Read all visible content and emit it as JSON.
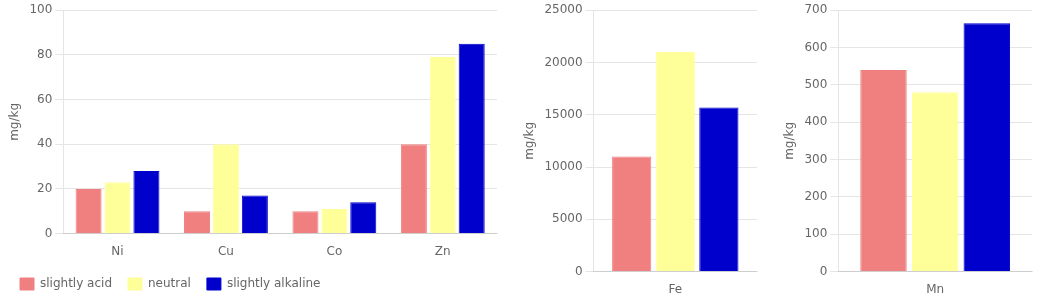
{
  "chart_data": [
    {
      "type": "bar",
      "categories": [
        "Ni",
        "Cu",
        "Co",
        "Zn"
      ],
      "series": [
        {
          "name": "slightly acid",
          "color": "#F08080",
          "values": [
            20,
            10,
            10,
            40
          ]
        },
        {
          "name": "neutral",
          "color": "#FFFF99",
          "values": [
            23,
            40,
            11,
            79
          ]
        },
        {
          "name": "slightly alkaline",
          "color": "#0000CD",
          "values": [
            28,
            17,
            14,
            85
          ]
        }
      ],
      "y_label": "mg/kg",
      "ylim": [
        0,
        100
      ],
      "yticks": [
        0,
        20,
        40,
        60,
        80,
        100
      ],
      "grid": true,
      "legend": "lower left"
    },
    {
      "type": "bar",
      "categories": [
        "Fe"
      ],
      "series": [
        {
          "name": "slightly acid",
          "color": "#F08080",
          "values": [
            11000
          ]
        },
        {
          "name": "neutral",
          "color": "#FFFF99",
          "values": [
            21000
          ]
        },
        {
          "name": "slightly alkaline",
          "color": "#0000CD",
          "values": [
            15700
          ]
        }
      ],
      "y_label": "mg/kg",
      "ylim": [
        0,
        25000
      ],
      "yticks": [
        0,
        5000,
        10000,
        15000,
        20000,
        25000
      ],
      "grid": true
    },
    {
      "type": "bar",
      "categories": [
        "Mn"
      ],
      "series": [
        {
          "name": "slightly acid",
          "color": "#F08080",
          "values": [
            540
          ]
        },
        {
          "name": "neutral",
          "color": "#FFFF99",
          "values": [
            480
          ]
        },
        {
          "name": "slightly alkaline",
          "color": "#0000CD",
          "values": [
            665
          ]
        }
      ],
      "y_label": "mg/kg",
      "ylim": [
        0,
        700
      ],
      "yticks": [
        0,
        100,
        200,
        300,
        400,
        500,
        600,
        700
      ],
      "grid": true
    }
  ]
}
